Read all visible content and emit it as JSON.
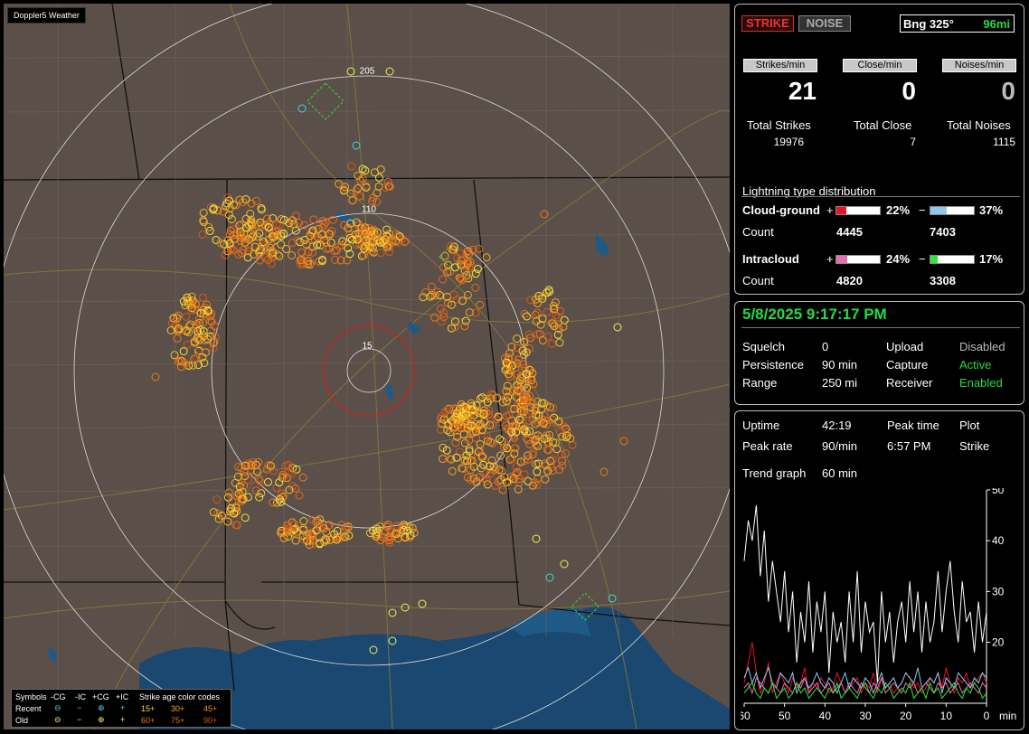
{
  "app": {
    "title": "Doppler5 Weather"
  },
  "map": {
    "ring_labels": [
      "205",
      "110",
      "15"
    ],
    "legend": {
      "symbols_label": "Symbols",
      "headers": [
        "-CG",
        "-IC",
        "+CG",
        "+IC"
      ],
      "age_label": "Strike age color codes",
      "recent_label": "Recent",
      "old_label": "Old",
      "recent_symbols": [
        "⊖",
        "−",
        "⊕",
        "+"
      ],
      "old_symbols": [
        "⊖",
        "−",
        "⊕",
        "+"
      ],
      "recent_ages": [
        "15+",
        "30+",
        "45+"
      ],
      "old_ages": [
        "60+",
        "75+",
        "90+"
      ]
    }
  },
  "controls": {
    "strike_label": "STRIKE",
    "noise_label": "NOISE",
    "bearing_label": "Bng 325°",
    "distance_label": "96mi"
  },
  "stats": {
    "strikes_min_label": "Strikes/min",
    "close_min_label": "Close/min",
    "noises_min_label": "Noises/min",
    "strikes_min": "21",
    "close_min": "0",
    "noises_min": "0",
    "total_strikes_label": "Total Strikes",
    "total_close_label": "Total Close",
    "total_noises_label": "Total Noises",
    "total_strikes": "19976",
    "total_close": "7",
    "total_noises": "1115"
  },
  "distribution": {
    "title": "Lightning type distribution",
    "cg_label": "Cloud-ground",
    "ic_label": "Intracloud",
    "count_label": "Count",
    "plus": "+",
    "minus": "−",
    "cg_pos_pct": "22%",
    "cg_neg_pct": "37%",
    "ic_pos_pct": "24%",
    "ic_neg_pct": "17%",
    "cg_pos_frac": 0.22,
    "cg_neg_frac": 0.37,
    "ic_pos_frac": 0.24,
    "ic_neg_frac": 0.17,
    "cg_pos_count": "4445",
    "cg_neg_count": "7403",
    "ic_pos_count": "4820",
    "ic_neg_count": "3308",
    "colors": {
      "cg_pos": "#e8122a",
      "cg_neg": "#8ec8ef",
      "ic_pos": "#e76fb2",
      "ic_neg": "#2ce83a"
    }
  },
  "status": {
    "datetime": "5/8/2025 9:17:17 PM",
    "squelch_label": "Squelch",
    "squelch": "0",
    "persistence_label": "Persistence",
    "persistence": "90 min",
    "range_label": "Range",
    "range": "250 mi",
    "upload_label": "Upload",
    "upload": "Disabled",
    "capture_label": "Capture",
    "capture": "Active",
    "receiver_label": "Receiver",
    "receiver": "Enabled"
  },
  "trend": {
    "uptime_label": "Uptime",
    "uptime": "42:19",
    "peak_time_label": "Peak time",
    "peak_time": "6:57 PM",
    "plot_label": "Plot",
    "plot": "Strike",
    "peak_rate_label": "Peak rate",
    "peak_rate": "90/min",
    "trend_graph_label": "Trend graph",
    "trend_graph": "60 min"
  },
  "chart_data": {
    "type": "line",
    "xlabel": "min",
    "x_ticks": [
      "60",
      "50",
      "40",
      "30",
      "20",
      "10",
      "0"
    ],
    "y_ticks": [
      "50",
      "40",
      "30",
      "20"
    ],
    "xlim": [
      60,
      0
    ],
    "ylim": [
      8,
      50
    ],
    "x": [
      60,
      59,
      58,
      57,
      56,
      55,
      54,
      53,
      52,
      51,
      50,
      49,
      48,
      47,
      46,
      45,
      44,
      43,
      42,
      41,
      40,
      39,
      38,
      37,
      36,
      35,
      34,
      33,
      32,
      31,
      30,
      29,
      28,
      27,
      26,
      25,
      24,
      23,
      22,
      21,
      20,
      19,
      18,
      17,
      16,
      15,
      14,
      13,
      12,
      11,
      10,
      9,
      8,
      7,
      6,
      5,
      4,
      3,
      2,
      1,
      0
    ],
    "series": [
      {
        "color": "#ffffff",
        "values": [
          36,
          44,
          40,
          47,
          33,
          42,
          28,
          36,
          30,
          24,
          34,
          22,
          30,
          16,
          26,
          20,
          32,
          18,
          28,
          22,
          30,
          14,
          26,
          20,
          24,
          16,
          30,
          20,
          34,
          18,
          28,
          22,
          24,
          12,
          30,
          20,
          26,
          16,
          24,
          28,
          20,
          32,
          22,
          30,
          18,
          28,
          20,
          24,
          34,
          22,
          30,
          36,
          26,
          20,
          32,
          24,
          26,
          18,
          28,
          20,
          26
        ]
      },
      {
        "color": "#e8122a",
        "values": [
          12,
          16,
          20,
          14,
          10,
          12,
          16,
          10,
          12,
          14,
          12,
          10,
          13,
          11,
          12,
          15,
          10,
          12,
          11,
          13,
          12,
          10,
          11,
          14,
          12,
          10,
          11,
          12,
          13,
          10,
          12,
          11,
          14,
          10,
          13,
          11,
          12,
          10,
          11,
          12,
          14,
          13,
          11,
          12,
          10,
          11,
          13,
          12,
          14,
          11,
          15,
          12,
          10,
          13,
          12,
          14,
          11,
          12,
          13,
          14,
          12
        ]
      },
      {
        "color": "#8ec8ef",
        "values": [
          13,
          15,
          12,
          14,
          11,
          13,
          15,
          12,
          11,
          14,
          13,
          12,
          14,
          10,
          12,
          13,
          11,
          12,
          14,
          12,
          11,
          13,
          12,
          10,
          12,
          14,
          11,
          13,
          12,
          11,
          13,
          12,
          10,
          12,
          14,
          11,
          12,
          13,
          11,
          12,
          14,
          13,
          12,
          15,
          11,
          12,
          13,
          12,
          14,
          10,
          13,
          12,
          11,
          14,
          13,
          12,
          11,
          13,
          12,
          14,
          13
        ]
      },
      {
        "color": "#e76fb2",
        "values": [
          11,
          12,
          10,
          13,
          12,
          11,
          10,
          12,
          11,
          10,
          12,
          11,
          10,
          12,
          11,
          13,
          10,
          11,
          12,
          10,
          11,
          12,
          10,
          11,
          12,
          10,
          12,
          11,
          10,
          12,
          11,
          10,
          12,
          11,
          13,
          10,
          11,
          12,
          11,
          10,
          12,
          11,
          12,
          10,
          11,
          12,
          11,
          10,
          12,
          11,
          12,
          10,
          11,
          12,
          10,
          11,
          12,
          11,
          10,
          12,
          11
        ]
      },
      {
        "color": "#2ce83a",
        "values": [
          10,
          11,
          12,
          10,
          9,
          11,
          10,
          12,
          9,
          10,
          11,
          9,
          10,
          12,
          10,
          11,
          9,
          10,
          11,
          10,
          9,
          11,
          10,
          12,
          9,
          10,
          11,
          10,
          9,
          11,
          12,
          10,
          9,
          11,
          10,
          12,
          11,
          9,
          10,
          11,
          10,
          12,
          9,
          10,
          11,
          9,
          12,
          10,
          11,
          9,
          10,
          11,
          12,
          10,
          9,
          11,
          10,
          12,
          11,
          9,
          10
        ]
      }
    ]
  }
}
